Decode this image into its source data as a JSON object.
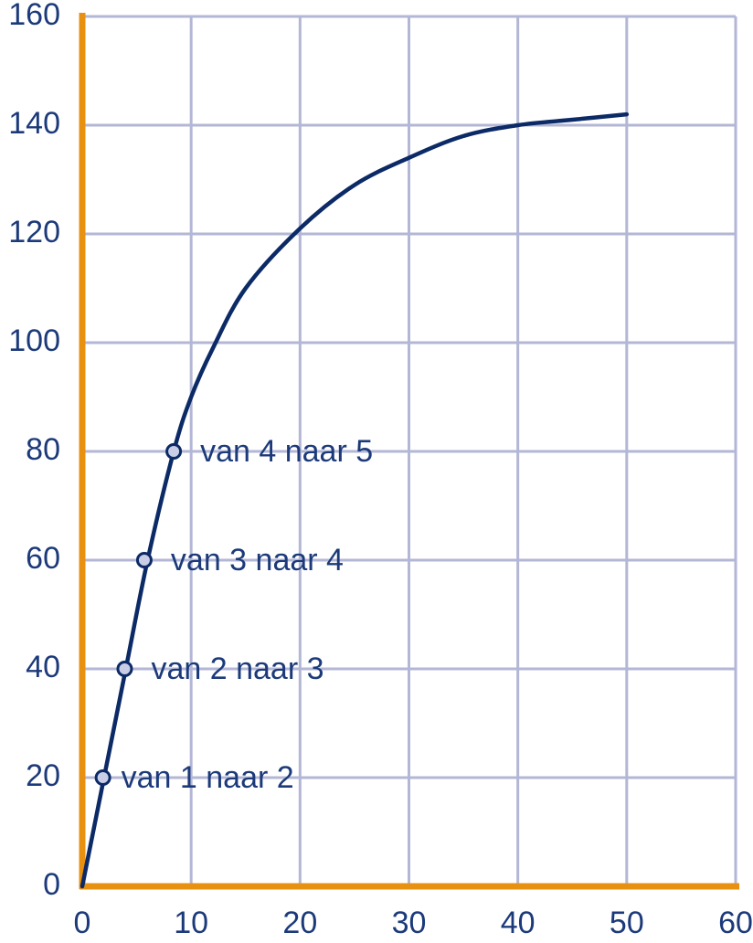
{
  "chart_data": {
    "type": "line",
    "x": [
      0,
      2,
      4,
      6,
      8.4,
      10,
      12,
      15,
      20,
      25,
      30,
      35,
      40,
      45,
      50
    ],
    "series": [
      {
        "color": "#0b2a66",
        "values": [
          0,
          20,
          40,
          60,
          80,
          90,
          99,
          110,
          121,
          129,
          134,
          138,
          140,
          141,
          142
        ]
      }
    ],
    "markers": {
      "x": [
        1.9,
        3.9,
        5.7,
        8.4
      ],
      "y": [
        20,
        40,
        60,
        80
      ],
      "color": "#c9cde6",
      "labels": [
        "van 1 naar 2",
        "van 2 naar 3",
        "van 3 naar 4",
        "van 4 naar 5"
      ]
    },
    "xlim": [
      0,
      60
    ],
    "ylim": [
      0,
      160
    ],
    "xticks": [
      0,
      10,
      20,
      30,
      40,
      50,
      60
    ],
    "yticks": [
      0,
      20,
      40,
      60,
      80,
      100,
      120,
      140,
      160
    ],
    "grid": true,
    "grid_color": "#b3b7d6",
    "axis_color": "#e8900f"
  }
}
